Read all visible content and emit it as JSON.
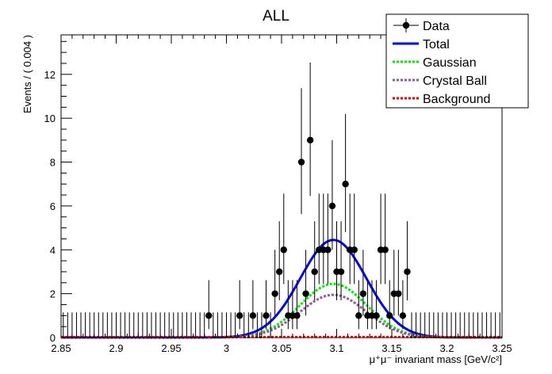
{
  "chart_data": {
    "type": "scatter",
    "title": "ALL",
    "xlabel": "μ⁺μ⁻ invariant mass [GeV/c²]",
    "ylabel": "Events / ( 0.004 )",
    "xlim": [
      2.85,
      3.25
    ],
    "ylim": [
      0,
      13.8
    ],
    "x_ticks": [
      2.85,
      2.9,
      2.95,
      3.0,
      3.05,
      3.1,
      3.15,
      3.2,
      3.25
    ],
    "x_tick_labels": [
      "2.85",
      "2.9",
      "2.95",
      "3",
      "3.05",
      "3.1",
      "3.15",
      "3.2",
      "3.25"
    ],
    "y_ticks": [
      0,
      2,
      4,
      6,
      8,
      10,
      12
    ],
    "y_tick_labels": [
      "0",
      "2",
      "4",
      "6",
      "8",
      "10",
      "12"
    ],
    "grid": false,
    "legend_position": "top-right",
    "bin_width": 0.004,
    "series": [
      {
        "name": "Data",
        "style": "points-with-errors",
        "color": "#000000",
        "x": [
          2.852,
          2.856,
          2.86,
          2.864,
          2.868,
          2.872,
          2.876,
          2.88,
          2.884,
          2.888,
          2.892,
          2.896,
          2.9,
          2.904,
          2.908,
          2.912,
          2.916,
          2.92,
          2.924,
          2.928,
          2.932,
          2.936,
          2.94,
          2.944,
          2.948,
          2.952,
          2.956,
          2.96,
          2.964,
          2.968,
          2.972,
          2.976,
          2.98,
          2.984,
          2.988,
          2.992,
          2.996,
          3.0,
          3.004,
          3.008,
          3.012,
          3.016,
          3.02,
          3.024,
          3.028,
          3.032,
          3.036,
          3.04,
          3.044,
          3.048,
          3.052,
          3.056,
          3.06,
          3.064,
          3.068,
          3.072,
          3.076,
          3.08,
          3.084,
          3.088,
          3.092,
          3.096,
          3.1,
          3.104,
          3.108,
          3.112,
          3.116,
          3.12,
          3.124,
          3.128,
          3.132,
          3.136,
          3.14,
          3.144,
          3.148,
          3.152,
          3.156,
          3.16,
          3.164,
          3.168,
          3.172,
          3.176,
          3.18,
          3.184,
          3.188,
          3.192,
          3.196,
          3.2,
          3.204,
          3.208,
          3.212,
          3.216,
          3.22,
          3.224,
          3.228,
          3.232,
          3.236,
          3.24,
          3.244,
          3.248
        ],
        "values": [
          0,
          0,
          0,
          0,
          0,
          0,
          0,
          0,
          0,
          0,
          0,
          0,
          0,
          0,
          0,
          0,
          0,
          0,
          0,
          0,
          0,
          0,
          0,
          0,
          0,
          0,
          0,
          0,
          0,
          0,
          0,
          0,
          0,
          1,
          0,
          0,
          0,
          0,
          0,
          0,
          1,
          0,
          0,
          1,
          0,
          0,
          1,
          0,
          2,
          3,
          4,
          1,
          1,
          1,
          8,
          2,
          9,
          3,
          4,
          4,
          4,
          6,
          3,
          3,
          7,
          4,
          4,
          1,
          2,
          1,
          1,
          1,
          4,
          4,
          1,
          2,
          2,
          1,
          3,
          0,
          0,
          0,
          0,
          0,
          0,
          0,
          0,
          0,
          0,
          0,
          0,
          0,
          0,
          0,
          0,
          0,
          0,
          0,
          0,
          0
        ]
      },
      {
        "name": "Total",
        "style": "solid",
        "color": "#0000ff",
        "peak": 4.45,
        "mean": 3.097,
        "sigma": 0.03
      },
      {
        "name": "Gaussian",
        "style": "dotted",
        "color": "#00ee00",
        "peak": 2.45,
        "mean": 3.097,
        "sigma": 0.03
      },
      {
        "name": "Crystal Ball",
        "style": "dotted",
        "color": "#995599",
        "peak": 1.95,
        "mean": 3.097,
        "sigma": 0.03
      },
      {
        "name": "Background",
        "style": "dotted",
        "color": "#ee0000",
        "value": 0.02
      }
    ]
  }
}
